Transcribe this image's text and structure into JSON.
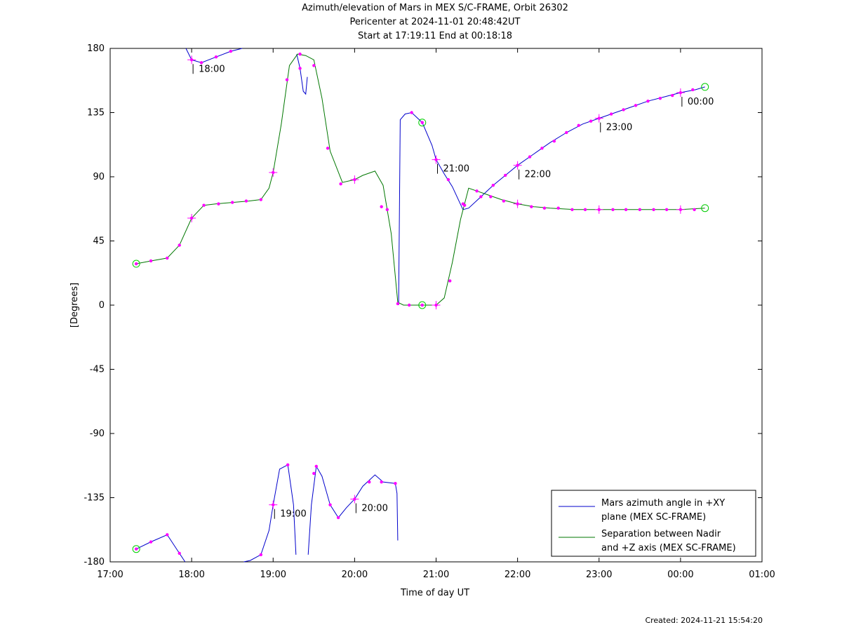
{
  "title": "Azimuth/elevation of Mars in MEX S/C-FRAME,  Orbit 26302",
  "subtitle1": "Pericenter at 2024-11-01 20:48:42UT",
  "subtitle2": "Start at 17:19:11 End at 00:18:18",
  "created": "Created: 2024-11-21 15:54:20",
  "chart_data": {
    "type": "line",
    "xlabel": "Time of day UT",
    "ylabel": "[Degrees]",
    "xlim": [
      17.0,
      25.0
    ],
    "ylim": [
      -180,
      180
    ],
    "x_ticks": [
      17,
      18,
      19,
      20,
      21,
      22,
      23,
      24,
      25
    ],
    "x_tick_labels": [
      "17:00",
      "18:00",
      "19:00",
      "20:00",
      "21:00",
      "22:00",
      "23:00",
      "00:00",
      "01:00"
    ],
    "y_ticks": [
      -180,
      -135,
      -90,
      -45,
      0,
      45,
      90,
      135,
      180
    ],
    "y_tick_labels": [
      "-180",
      "-135",
      "-90",
      "-45",
      "0",
      "45",
      "90",
      "135",
      "180"
    ],
    "grid": false,
    "legend_position": "bottom-right",
    "series": [
      {
        "name": "Mars azimuth angle in +XY plane (MEX SC-FRAME)",
        "legend_lines": [
          "Mars azimuth angle in +XY",
          "plane (MEX SC-FRAME)"
        ],
        "color": "#0000cc",
        "points": [
          [
            17.32,
            -171
          ],
          [
            17.5,
            -166
          ],
          [
            17.7,
            -161
          ],
          [
            17.85,
            -174
          ],
          [
            17.92,
            -180
          ],
          [
            17.93,
            null
          ],
          [
            17.93,
            180
          ],
          [
            18.0,
            172
          ],
          [
            18.12,
            170
          ],
          [
            18.3,
            174
          ],
          [
            18.48,
            178
          ],
          [
            18.62,
            180
          ],
          [
            18.63,
            null
          ],
          [
            18.64,
            -180
          ],
          [
            18.72,
            -179
          ],
          [
            18.85,
            -175
          ],
          [
            18.95,
            -158
          ],
          [
            19.0,
            -140
          ],
          [
            19.08,
            -115
          ],
          [
            19.18,
            -112
          ],
          [
            19.25,
            -140
          ],
          [
            19.28,
            -175
          ],
          [
            19.29,
            null
          ],
          [
            19.29,
            176
          ],
          [
            19.33,
            166
          ],
          [
            19.37,
            150
          ],
          [
            19.4,
            148
          ],
          [
            19.42,
            160
          ],
          [
            19.43,
            null
          ],
          [
            19.43,
            -175
          ],
          [
            19.47,
            -140
          ],
          [
            19.53,
            -113
          ],
          [
            19.6,
            -120
          ],
          [
            19.7,
            -140
          ],
          [
            19.8,
            -149
          ],
          [
            19.9,
            -142
          ],
          [
            20.0,
            -136
          ],
          [
            20.1,
            -127
          ],
          [
            20.25,
            -119
          ],
          [
            20.35,
            -124
          ],
          [
            20.5,
            -125
          ],
          [
            20.52,
            -132
          ],
          [
            20.53,
            -165
          ],
          [
            20.54,
            null
          ],
          [
            20.54,
            0
          ],
          [
            20.56,
            130
          ],
          [
            20.62,
            134
          ],
          [
            20.7,
            135
          ],
          [
            20.83,
            128
          ],
          [
            20.95,
            112
          ],
          [
            21.0,
            102
          ],
          [
            21.1,
            92
          ],
          [
            21.2,
            83
          ],
          [
            21.33,
            67
          ],
          [
            21.4,
            68
          ],
          [
            21.55,
            76
          ],
          [
            21.7,
            84
          ],
          [
            21.85,
            91
          ],
          [
            22.0,
            98
          ],
          [
            22.2,
            106
          ],
          [
            22.4,
            114
          ],
          [
            22.6,
            121
          ],
          [
            22.8,
            127
          ],
          [
            23.0,
            131
          ],
          [
            23.2,
            135
          ],
          [
            23.4,
            139
          ],
          [
            23.6,
            143
          ],
          [
            23.8,
            146
          ],
          [
            24.0,
            149
          ],
          [
            24.18,
            151
          ],
          [
            24.3,
            153
          ]
        ]
      },
      {
        "name": "Separation between Nadir and +Z axis (MEX SC-FRAME)",
        "legend_lines": [
          "Separation between Nadir",
          "and +Z axis (MEX SC-FRAME)"
        ],
        "color": "#007700",
        "points": [
          [
            17.32,
            29
          ],
          [
            17.5,
            31
          ],
          [
            17.7,
            33
          ],
          [
            17.85,
            42
          ],
          [
            18.0,
            61
          ],
          [
            18.15,
            70
          ],
          [
            18.3,
            71
          ],
          [
            18.5,
            72
          ],
          [
            18.7,
            73
          ],
          [
            18.85,
            74
          ],
          [
            18.95,
            82
          ],
          [
            19.0,
            93
          ],
          [
            19.1,
            127
          ],
          [
            19.2,
            168
          ],
          [
            19.3,
            176
          ],
          [
            19.4,
            175
          ],
          [
            19.5,
            172
          ],
          [
            19.6,
            145
          ],
          [
            19.7,
            108
          ],
          [
            19.85,
            86
          ],
          [
            20.0,
            88
          ],
          [
            20.1,
            91
          ],
          [
            20.25,
            94
          ],
          [
            20.35,
            84
          ],
          [
            20.45,
            50
          ],
          [
            20.53,
            2
          ],
          [
            20.6,
            0
          ],
          [
            20.83,
            0
          ],
          [
            21.0,
            0
          ],
          [
            21.1,
            5
          ],
          [
            21.2,
            30
          ],
          [
            21.3,
            60
          ],
          [
            21.4,
            82
          ],
          [
            21.5,
            80
          ],
          [
            21.65,
            77
          ],
          [
            21.8,
            74
          ],
          [
            22.0,
            71
          ],
          [
            22.2,
            69
          ],
          [
            22.4,
            68
          ],
          [
            22.7,
            67
          ],
          [
            23.0,
            67
          ],
          [
            23.5,
            67
          ],
          [
            24.0,
            67
          ],
          [
            24.3,
            68
          ]
        ]
      }
    ],
    "markers": {
      "color": "#ff00ff",
      "dots": [
        [
          17.32,
          -171
        ],
        [
          17.5,
          -166
        ],
        [
          17.7,
          -161
        ],
        [
          17.85,
          -174
        ],
        [
          18.0,
          172
        ],
        [
          18.12,
          170
        ],
        [
          18.3,
          174
        ],
        [
          18.48,
          178
        ],
        [
          18.85,
          -175
        ],
        [
          19.0,
          -140
        ],
        [
          19.18,
          -112
        ],
        [
          19.33,
          166
        ],
        [
          19.5,
          -118
        ],
        [
          19.53,
          -113
        ],
        [
          19.7,
          -140
        ],
        [
          19.8,
          -149
        ],
        [
          20.0,
          -136
        ],
        [
          20.18,
          -124
        ],
        [
          20.33,
          -124
        ],
        [
          20.5,
          -125
        ],
        [
          20.7,
          135
        ],
        [
          20.83,
          128
        ],
        [
          21.0,
          102
        ],
        [
          21.15,
          88
        ],
        [
          21.35,
          70
        ],
        [
          21.55,
          76
        ],
        [
          21.7,
          84
        ],
        [
          21.85,
          91
        ],
        [
          22.0,
          98
        ],
        [
          22.15,
          104
        ],
        [
          22.3,
          110
        ],
        [
          22.45,
          115
        ],
        [
          22.6,
          121
        ],
        [
          22.75,
          126
        ],
        [
          22.9,
          129
        ],
        [
          23.0,
          131
        ],
        [
          23.15,
          134
        ],
        [
          23.3,
          137
        ],
        [
          23.45,
          140
        ],
        [
          23.6,
          143
        ],
        [
          23.75,
          145
        ],
        [
          23.9,
          147
        ],
        [
          24.0,
          149
        ],
        [
          24.15,
          151
        ],
        [
          17.32,
          29
        ],
        [
          17.5,
          31
        ],
        [
          17.7,
          33
        ],
        [
          17.85,
          42
        ],
        [
          18.0,
          61
        ],
        [
          18.15,
          70
        ],
        [
          18.33,
          71
        ],
        [
          18.5,
          72
        ],
        [
          18.67,
          73
        ],
        [
          18.85,
          74
        ],
        [
          19.0,
          93
        ],
        [
          19.17,
          158
        ],
        [
          19.33,
          176
        ],
        [
          19.5,
          168
        ],
        [
          19.67,
          110
        ],
        [
          19.83,
          85
        ],
        [
          20.0,
          88
        ],
        [
          20.33,
          69
        ],
        [
          20.4,
          67
        ],
        [
          20.53,
          1
        ],
        [
          20.67,
          0
        ],
        [
          20.83,
          0
        ],
        [
          21.0,
          0
        ],
        [
          21.17,
          17
        ],
        [
          21.33,
          71
        ],
        [
          21.5,
          80
        ],
        [
          21.67,
          76
        ],
        [
          21.83,
          73
        ],
        [
          22.0,
          71
        ],
        [
          22.17,
          69
        ],
        [
          22.33,
          68
        ],
        [
          22.5,
          68
        ],
        [
          22.67,
          67
        ],
        [
          22.83,
          67
        ],
        [
          23.0,
          67
        ],
        [
          23.17,
          67
        ],
        [
          23.33,
          67
        ],
        [
          23.5,
          67
        ],
        [
          23.67,
          67
        ],
        [
          23.83,
          67
        ],
        [
          24.0,
          67
        ],
        [
          24.17,
          67
        ]
      ],
      "crosses": [
        [
          18.0,
          172
        ],
        [
          18.0,
          61
        ],
        [
          19.0,
          -140
        ],
        [
          19.0,
          93
        ],
        [
          20.0,
          -136
        ],
        [
          20.0,
          88
        ],
        [
          21.0,
          102
        ],
        [
          21.0,
          0
        ],
        [
          22.0,
          98
        ],
        [
          22.0,
          71
        ],
        [
          23.0,
          131
        ],
        [
          23.0,
          67
        ],
        [
          24.0,
          149
        ],
        [
          24.0,
          67
        ]
      ],
      "circles_color": "#00cc00",
      "circles": [
        [
          17.32,
          -171
        ],
        [
          17.32,
          29
        ],
        [
          20.83,
          128
        ],
        [
          20.83,
          0
        ],
        [
          24.3,
          153
        ],
        [
          24.3,
          68
        ]
      ]
    },
    "annotations": [
      {
        "text": "18:00",
        "x": 18.0,
        "y": 172
      },
      {
        "text": "19:00",
        "x": 19.0,
        "y": -140
      },
      {
        "text": "20:00",
        "x": 20.0,
        "y": -136
      },
      {
        "text": "21:00",
        "x": 21.0,
        "y": 102
      },
      {
        "text": "22:00",
        "x": 22.0,
        "y": 98
      },
      {
        "text": "23:00",
        "x": 23.0,
        "y": 131
      },
      {
        "text": "00:00",
        "x": 24.0,
        "y": 149
      }
    ]
  }
}
